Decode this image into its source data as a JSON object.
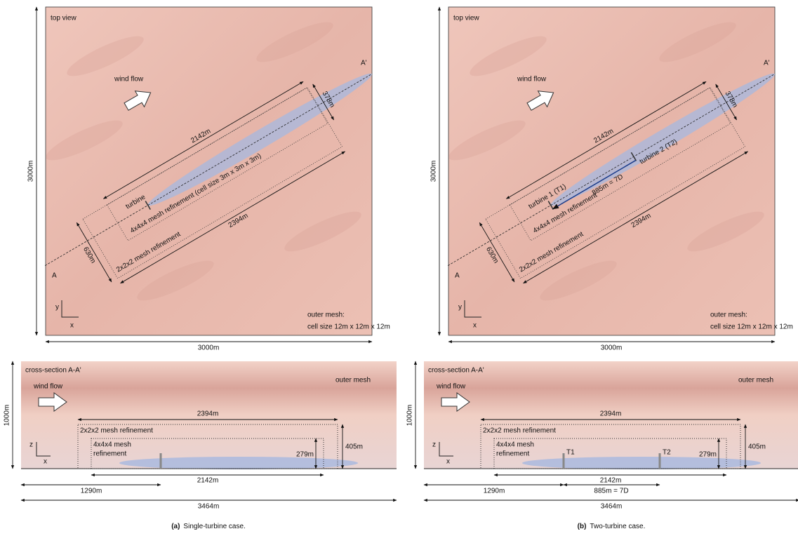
{
  "panels": [
    {
      "caption_label": "(a)",
      "caption": "Single-turbine case.",
      "top_view": {
        "title": "top view",
        "wind": "wind flow",
        "width": "3000m",
        "height": "3000m",
        "length_outer": "2394m",
        "length_inner": "2142m",
        "width_inner": "378m",
        "width_outer": "630m",
        "refine_inner": "4x4x4 mesh refinement (cell size 3m x 3m x 3m)",
        "refine_outer": "2x2x2 mesh refinement",
        "turbines": [
          "turbine"
        ],
        "point_a": "A",
        "point_a2": "A'",
        "axis_y": "y",
        "axis_x": "x",
        "outer_mesh": "outer mesh:",
        "outer_cell": "cell size 12m x 12m x 12m"
      },
      "cross_section": {
        "title": "cross-section A-A'",
        "wind": "wind flow",
        "outer_mesh": "outer mesh",
        "height": "1000m",
        "length": "3464m",
        "offset": "1290m",
        "len_outer": "2394m",
        "len_inner": "2142m",
        "h_outer": "405m",
        "h_inner": "279m",
        "refine_outer": "2x2x2 mesh refinement",
        "refine_inner": [
          "4x4x4 mesh",
          "refinement"
        ],
        "axis_z": "z",
        "axis_x": "x"
      }
    },
    {
      "caption_label": "(b)",
      "caption": "Two-turbine case.",
      "top_view": {
        "title": "top view",
        "wind": "wind flow",
        "width": "3000m",
        "height": "3000m",
        "length_outer": "2394m",
        "length_inner": "2142m",
        "width_inner": "378m",
        "width_outer": "630m",
        "refine_inner": "4x4x4 mesh refinement",
        "refine_outer": "2x2x2 mesh refinement",
        "turbines": [
          "turbine 1 (T1)",
          "turbine 2 (T2)"
        ],
        "spacing": "885m = 7D",
        "point_a": "A",
        "point_a2": "A'",
        "axis_y": "y",
        "axis_x": "x",
        "outer_mesh": "outer mesh:",
        "outer_cell": "cell size 12m x 12m x 12m"
      },
      "cross_section": {
        "title": "cross-section A-A'",
        "wind": "wind flow",
        "outer_mesh": "outer mesh",
        "height": "1000m",
        "length": "3464m",
        "offset": "1290m",
        "len_outer": "2394m",
        "len_inner": "2142m",
        "h_outer": "405m",
        "h_inner": "279m",
        "refine_outer": "2x2x2 mesh refinement",
        "refine_inner": [
          "4x4x4 mesh",
          "refinement"
        ],
        "turbines": [
          "T1",
          "T2"
        ],
        "spacing": "885m = 7D",
        "axis_z": "z",
        "axis_x": "x"
      }
    }
  ]
}
